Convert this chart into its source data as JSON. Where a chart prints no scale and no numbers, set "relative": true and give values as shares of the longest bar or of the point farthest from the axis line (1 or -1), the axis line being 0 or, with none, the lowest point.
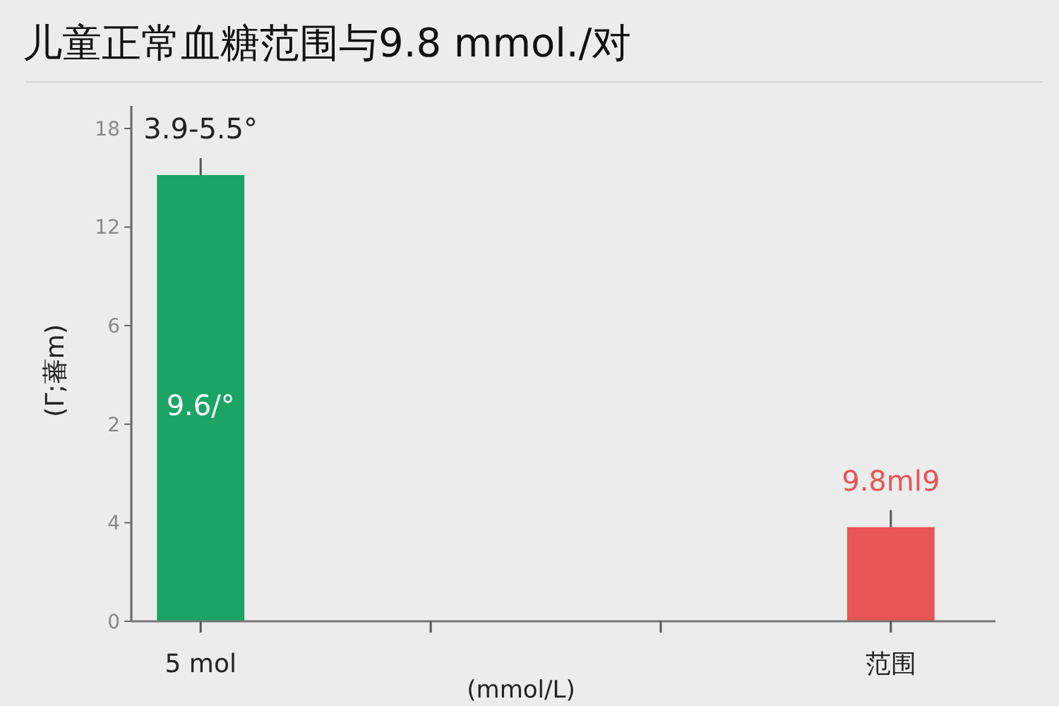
{
  "chart_data": {
    "type": "bar",
    "title": "儿童正常血糖范围与9.8 mmol./对",
    "xlabel": "(mmol/L)",
    "ylabel": "(Γ;蕃m)",
    "categories": [
      "5 mol",
      null,
      null,
      "范围"
    ],
    "relative": true,
    "series": [
      {
        "color": "#1ba466",
        "values": [
          1,
          null,
          null,
          null
        ]
      },
      {
        "color": "#e85555",
        "values": [
          null,
          null,
          null,
          0.211
        ]
      }
    ],
    "annotations": [
      "18",
      "12",
      "6",
      "2",
      "4",
      "0",
      {
        "text": "3.9-5.5°",
        "x": "5 mol",
        "y": 1
      },
      {
        "text": "9.8ml9",
        "x": "范围",
        "y": 0.211
      },
      "9.6/°"
    ]
  }
}
